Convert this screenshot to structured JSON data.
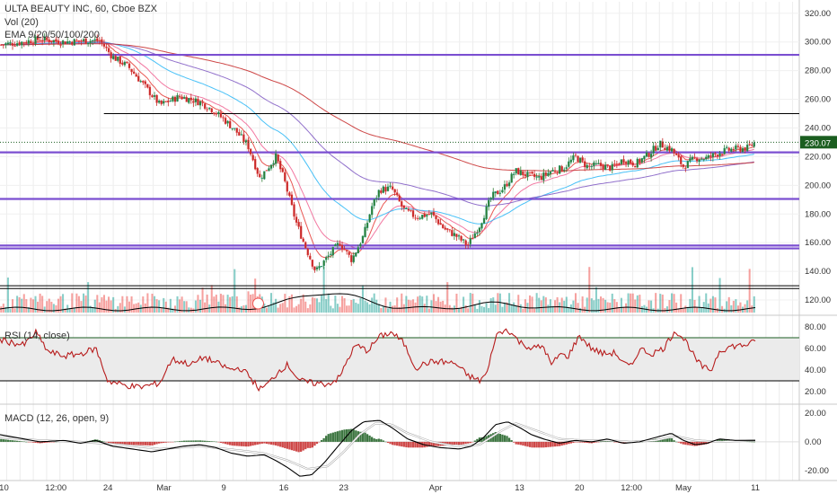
{
  "chart_data": {
    "type": "candlestick",
    "header": {
      "symbol_line": "ULTA BEAUTY INC, 60, Cboe BZX",
      "volume_label": "Vol (20)",
      "ema_label": "EMA 9/20/50/100/200"
    },
    "price_axis": {
      "range": [
        110,
        328
      ],
      "ticks": [
        "320.00",
        "300.00",
        "280.00",
        "260.00",
        "240.00",
        "220.00",
        "200.00",
        "180.00",
        "160.00",
        "140.00",
        "120.00"
      ],
      "tick_values": [
        320,
        300,
        280,
        260,
        240,
        220,
        200,
        180,
        160,
        140,
        120
      ],
      "last_price_label": "230.07",
      "last_price": 230.07
    },
    "time_axis": {
      "labels": [
        "10",
        "12:00",
        "24",
        "Mar",
        "9",
        "16",
        "23",
        "Apr",
        "13",
        "20",
        "12:00",
        "May",
        "11"
      ],
      "positions": [
        0.005,
        0.07,
        0.135,
        0.205,
        0.28,
        0.355,
        0.43,
        0.545,
        0.65,
        0.725,
        0.79,
        0.855,
        0.945
      ]
    },
    "horizontal_levels": [
      {
        "price": 291,
        "color": "#7b4fd1",
        "kind": "resistance"
      },
      {
        "price": 250,
        "color": "#000000",
        "kind": "line",
        "from": 0.13
      },
      {
        "price": 223,
        "color": "#7b4fd1",
        "kind": "level"
      },
      {
        "price": 190.5,
        "color": "#7b4fd1",
        "kind": "level"
      },
      {
        "price": 158,
        "color": "#7b4fd1",
        "kind": "level"
      },
      {
        "price": 156,
        "color": "#7b4fd1",
        "kind": "level"
      },
      {
        "price": 130,
        "color": "#000000",
        "kind": "line"
      },
      {
        "price": 128,
        "color": "#000000",
        "kind": "line"
      }
    ],
    "price_path_keypoints": [
      [
        0.0,
        298
      ],
      [
        0.03,
        300
      ],
      [
        0.05,
        302
      ],
      [
        0.08,
        300
      ],
      [
        0.11,
        301
      ],
      [
        0.125,
        301
      ],
      [
        0.14,
        290
      ],
      [
        0.16,
        283
      ],
      [
        0.18,
        270
      ],
      [
        0.2,
        256
      ],
      [
        0.225,
        262
      ],
      [
        0.25,
        258
      ],
      [
        0.265,
        253
      ],
      [
        0.28,
        246
      ],
      [
        0.295,
        238
      ],
      [
        0.31,
        228
      ],
      [
        0.325,
        205
      ],
      [
        0.335,
        212
      ],
      [
        0.345,
        220
      ],
      [
        0.355,
        205
      ],
      [
        0.37,
        175
      ],
      [
        0.38,
        160
      ],
      [
        0.395,
        140
      ],
      [
        0.41,
        150
      ],
      [
        0.425,
        160
      ],
      [
        0.44,
        148
      ],
      [
        0.455,
        165
      ],
      [
        0.465,
        185
      ],
      [
        0.475,
        197
      ],
      [
        0.49,
        198
      ],
      [
        0.505,
        183
      ],
      [
        0.52,
        178
      ],
      [
        0.54,
        180
      ],
      [
        0.555,
        170
      ],
      [
        0.57,
        165
      ],
      [
        0.585,
        158
      ],
      [
        0.6,
        172
      ],
      [
        0.615,
        192
      ],
      [
        0.63,
        198
      ],
      [
        0.645,
        210
      ],
      [
        0.66,
        207
      ],
      [
        0.675,
        205
      ],
      [
        0.69,
        210
      ],
      [
        0.705,
        212
      ],
      [
        0.72,
        220
      ],
      [
        0.735,
        213
      ],
      [
        0.75,
        214
      ],
      [
        0.765,
        212
      ],
      [
        0.78,
        218
      ],
      [
        0.795,
        215
      ],
      [
        0.81,
        221
      ],
      [
        0.825,
        229
      ],
      [
        0.84,
        225
      ],
      [
        0.855,
        213
      ],
      [
        0.87,
        219
      ],
      [
        0.885,
        219
      ],
      [
        0.9,
        223
      ],
      [
        0.915,
        225
      ],
      [
        0.935,
        226
      ],
      [
        0.945,
        230
      ]
    ],
    "ema_colors": [
      "#e53935",
      "#f06292",
      "#29b6f6",
      "#7e57c2",
      "#c62828"
    ],
    "rsi": {
      "label": "RSI (14, close)",
      "range": [
        10,
        90
      ],
      "ticks": [
        "80.00",
        "60.00",
        "40.00",
        "20.00"
      ],
      "tick_values": [
        80,
        60,
        40,
        20
      ],
      "upper_band": 70,
      "lower_band": 30,
      "line_color": "#b71c1c",
      "keypoints": [
        [
          0.0,
          68
        ],
        [
          0.03,
          63
        ],
        [
          0.045,
          75
        ],
        [
          0.06,
          57
        ],
        [
          0.08,
          53
        ],
        [
          0.1,
          55
        ],
        [
          0.12,
          60
        ],
        [
          0.135,
          30
        ],
        [
          0.155,
          26
        ],
        [
          0.175,
          24
        ],
        [
          0.2,
          28
        ],
        [
          0.215,
          50
        ],
        [
          0.24,
          45
        ],
        [
          0.255,
          52
        ],
        [
          0.275,
          45
        ],
        [
          0.29,
          40
        ],
        [
          0.3,
          42
        ],
        [
          0.31,
          36
        ],
        [
          0.325,
          22
        ],
        [
          0.335,
          27
        ],
        [
          0.35,
          40
        ],
        [
          0.36,
          45
        ],
        [
          0.375,
          30
        ],
        [
          0.39,
          28
        ],
        [
          0.41,
          27
        ],
        [
          0.425,
          33
        ],
        [
          0.435,
          50
        ],
        [
          0.445,
          63
        ],
        [
          0.46,
          58
        ],
        [
          0.475,
          71
        ],
        [
          0.49,
          75
        ],
        [
          0.505,
          65
        ],
        [
          0.52,
          42
        ],
        [
          0.535,
          47
        ],
        [
          0.55,
          48
        ],
        [
          0.57,
          46
        ],
        [
          0.585,
          35
        ],
        [
          0.6,
          30
        ],
        [
          0.61,
          38
        ],
        [
          0.62,
          72
        ],
        [
          0.635,
          78
        ],
        [
          0.65,
          66
        ],
        [
          0.665,
          60
        ],
        [
          0.68,
          62
        ],
        [
          0.69,
          44
        ],
        [
          0.7,
          55
        ],
        [
          0.71,
          52
        ],
        [
          0.725,
          72
        ],
        [
          0.74,
          60
        ],
        [
          0.755,
          55
        ],
        [
          0.77,
          56
        ],
        [
          0.78,
          46
        ],
        [
          0.79,
          43
        ],
        [
          0.8,
          60
        ],
        [
          0.815,
          55
        ],
        [
          0.83,
          60
        ],
        [
          0.845,
          77
        ],
        [
          0.86,
          65
        ],
        [
          0.87,
          50
        ],
        [
          0.88,
          42
        ],
        [
          0.89,
          40
        ],
        [
          0.9,
          58
        ],
        [
          0.915,
          62
        ],
        [
          0.93,
          63
        ],
        [
          0.945,
          66
        ]
      ]
    },
    "macd": {
      "label": "MACD (12, 26, open, 9)",
      "range": [
        -27,
        25
      ],
      "ticks": [
        "20.00",
        "0.00",
        "-20.00"
      ],
      "tick_values": [
        20,
        0,
        -20
      ],
      "macd_color": "#000000",
      "signal_color": "#ffffff",
      "hist_up_color": "#1b5e20",
      "hist_down_color": "#c62828",
      "macd_keypoints": [
        [
          0.0,
          5
        ],
        [
          0.03,
          2
        ],
        [
          0.05,
          0
        ],
        [
          0.08,
          1
        ],
        [
          0.1,
          -1
        ],
        [
          0.12,
          1
        ],
        [
          0.14,
          -3
        ],
        [
          0.165,
          -5
        ],
        [
          0.19,
          -7
        ],
        [
          0.21,
          -5
        ],
        [
          0.23,
          -3
        ],
        [
          0.25,
          -2
        ],
        [
          0.27,
          -4
        ],
        [
          0.29,
          -8
        ],
        [
          0.31,
          -10
        ],
        [
          0.33,
          -9
        ],
        [
          0.345,
          -13
        ],
        [
          0.36,
          -18
        ],
        [
          0.375,
          -24
        ],
        [
          0.39,
          -23
        ],
        [
          0.405,
          -15
        ],
        [
          0.42,
          -5
        ],
        [
          0.44,
          8
        ],
        [
          0.455,
          14
        ],
        [
          0.475,
          15
        ],
        [
          0.49,
          10
        ],
        [
          0.51,
          2
        ],
        [
          0.53,
          -2
        ],
        [
          0.55,
          -4
        ],
        [
          0.575,
          -5
        ],
        [
          0.59,
          -3
        ],
        [
          0.605,
          3
        ],
        [
          0.62,
          12
        ],
        [
          0.635,
          14
        ],
        [
          0.65,
          10
        ],
        [
          0.665,
          5
        ],
        [
          0.68,
          2
        ],
        [
          0.7,
          -1
        ],
        [
          0.72,
          1
        ],
        [
          0.74,
          0
        ],
        [
          0.76,
          2
        ],
        [
          0.78,
          -1
        ],
        [
          0.8,
          0
        ],
        [
          0.82,
          3
        ],
        [
          0.84,
          6
        ],
        [
          0.855,
          1
        ],
        [
          0.87,
          -2
        ],
        [
          0.885,
          -1
        ],
        [
          0.9,
          2
        ],
        [
          0.92,
          1
        ],
        [
          0.945,
          1
        ]
      ],
      "signal_keypoints": [
        [
          0.0,
          3
        ],
        [
          0.05,
          1
        ],
        [
          0.1,
          0
        ],
        [
          0.15,
          -2
        ],
        [
          0.2,
          -5
        ],
        [
          0.25,
          -3
        ],
        [
          0.3,
          -6
        ],
        [
          0.33,
          -8
        ],
        [
          0.36,
          -13
        ],
        [
          0.385,
          -19
        ],
        [
          0.41,
          -17
        ],
        [
          0.43,
          -7
        ],
        [
          0.45,
          5
        ],
        [
          0.47,
          13
        ],
        [
          0.49,
          12
        ],
        [
          0.51,
          6
        ],
        [
          0.54,
          0
        ],
        [
          0.57,
          -3
        ],
        [
          0.6,
          -2
        ],
        [
          0.625,
          7
        ],
        [
          0.645,
          13
        ],
        [
          0.67,
          8
        ],
        [
          0.7,
          2
        ],
        [
          0.73,
          1
        ],
        [
          0.76,
          1
        ],
        [
          0.79,
          0
        ],
        [
          0.82,
          1
        ],
        [
          0.845,
          4
        ],
        [
          0.87,
          1
        ],
        [
          0.9,
          0
        ],
        [
          0.945,
          1
        ]
      ]
    }
  }
}
